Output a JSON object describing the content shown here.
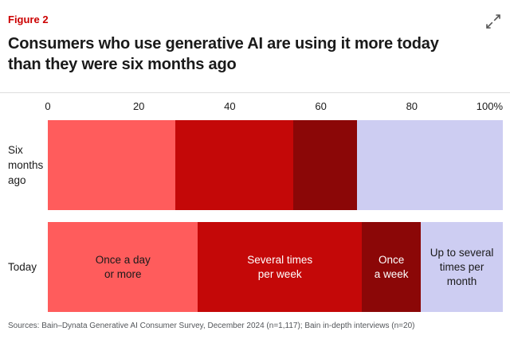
{
  "header": {
    "figure_label": "Figure 2",
    "title": "Consumers who use generative AI are using it more today\nthan they were six months ago",
    "expand_icon": "expand-diagonal-arrows-icon"
  },
  "footer": {
    "sources": "Sources: Bain–Dynata Generative AI Consumer Survey, December 2024 (n=1,117); Bain in-depth interviews (n=20)"
  },
  "colors": {
    "figure_label_red": "#CC0000",
    "title_text": "#1A1A1A",
    "divider": "#DDDDDD",
    "footer_text": "#53565A",
    "segment_salmon": "#FF5C5C",
    "segment_red": "#C40808",
    "segment_dark_red": "#8B0707",
    "segment_lavender": "#CDCDF2"
  },
  "chart_data": {
    "type": "bar",
    "orientation": "horizontal-stacked",
    "title": "Consumers who use generative AI are using it more today than they were six months ago",
    "categories": [
      "Six months ago",
      "Today"
    ],
    "row_display_labels": [
      "Six\nmonths\nago",
      "Today"
    ],
    "series": [
      {
        "name": "Once a day or more",
        "values": [
          28,
          33
        ],
        "color": "#FF5C5C",
        "label_color": "#1A1A1A",
        "display_label": "Once a day\nor more"
      },
      {
        "name": "Several times per week",
        "values": [
          26,
          36
        ],
        "color": "#C40808",
        "label_color": "#FFFFFF",
        "display_label": "Several times\nper week"
      },
      {
        "name": "Once a week",
        "values": [
          14,
          13
        ],
        "color": "#8B0707",
        "label_color": "#FFFFFF",
        "display_label": "Once\na week"
      },
      {
        "name": "Up to several times per month",
        "values": [
          32,
          18
        ],
        "color": "#CDCDF2",
        "label_color": "#1A1A1A",
        "display_label": "Up to several\ntimes per\nmonth"
      }
    ],
    "x_ticks": [
      {
        "label": "0",
        "value": 0
      },
      {
        "label": "20",
        "value": 20
      },
      {
        "label": "40",
        "value": 40
      },
      {
        "label": "60",
        "value": 60
      },
      {
        "label": "80",
        "value": 80
      },
      {
        "label": "100%",
        "value": 100,
        "align": "right"
      }
    ],
    "xlim": [
      0,
      100
    ],
    "grid": false,
    "legend": "none",
    "labels_shown_on_row": 1
  }
}
